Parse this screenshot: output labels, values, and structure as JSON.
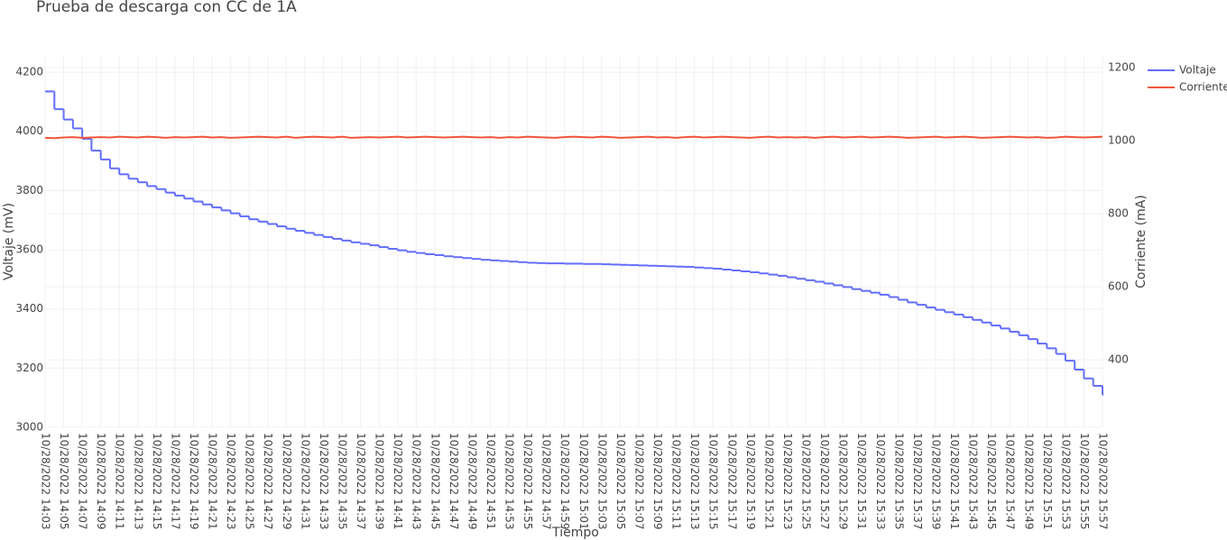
{
  "chart_data": {
    "type": "line",
    "title": "Prueba de descarga con CC de 1A",
    "x_label": "Tiempo",
    "y_label": "Voltaje (mV)",
    "y2_label": "Corriente (mA)",
    "x": [
      "10/28/2022 14:03",
      "10/28/2022 14:04",
      "10/28/2022 14:05",
      "10/28/2022 14:06",
      "10/28/2022 14:07",
      "10/28/2022 14:08",
      "10/28/2022 14:09",
      "10/28/2022 14:10",
      "10/28/2022 14:11",
      "10/28/2022 14:12",
      "10/28/2022 14:13",
      "10/28/2022 14:14",
      "10/28/2022 14:15",
      "10/28/2022 14:16",
      "10/28/2022 14:17",
      "10/28/2022 14:18",
      "10/28/2022 14:19",
      "10/28/2022 14:20",
      "10/28/2022 14:21",
      "10/28/2022 14:22",
      "10/28/2022 14:23",
      "10/28/2022 14:24",
      "10/28/2022 14:25",
      "10/28/2022 14:26",
      "10/28/2022 14:27",
      "10/28/2022 14:28",
      "10/28/2022 14:29",
      "10/28/2022 14:30",
      "10/28/2022 14:31",
      "10/28/2022 14:32",
      "10/28/2022 14:33",
      "10/28/2022 14:34",
      "10/28/2022 14:35",
      "10/28/2022 14:36",
      "10/28/2022 14:37",
      "10/28/2022 14:38",
      "10/28/2022 14:39",
      "10/28/2022 14:40",
      "10/28/2022 14:41",
      "10/28/2022 14:42",
      "10/28/2022 14:43",
      "10/28/2022 14:44",
      "10/28/2022 14:45",
      "10/28/2022 14:46",
      "10/28/2022 14:47",
      "10/28/2022 14:48",
      "10/28/2022 14:49",
      "10/28/2022 14:50",
      "10/28/2022 14:51",
      "10/28/2022 14:52",
      "10/28/2022 14:53",
      "10/28/2022 14:54",
      "10/28/2022 14:55",
      "10/28/2022 14:56",
      "10/28/2022 14:57",
      "10/28/2022 14:58",
      "10/28/2022 14:59",
      "10/28/2022 15:00",
      "10/28/2022 15:01",
      "10/28/2022 15:02",
      "10/28/2022 15:03",
      "10/28/2022 15:04",
      "10/28/2022 15:05",
      "10/28/2022 15:06",
      "10/28/2022 15:07",
      "10/28/2022 15:08",
      "10/28/2022 15:09",
      "10/28/2022 15:10",
      "10/28/2022 15:11",
      "10/28/2022 15:12",
      "10/28/2022 15:13",
      "10/28/2022 15:14",
      "10/28/2022 15:15",
      "10/28/2022 15:16",
      "10/28/2022 15:17",
      "10/28/2022 15:18",
      "10/28/2022 15:19",
      "10/28/2022 15:20",
      "10/28/2022 15:21",
      "10/28/2022 15:22",
      "10/28/2022 15:23",
      "10/28/2022 15:24",
      "10/28/2022 15:25",
      "10/28/2022 15:26",
      "10/28/2022 15:27",
      "10/28/2022 15:28",
      "10/28/2022 15:29",
      "10/28/2022 15:30",
      "10/28/2022 15:31",
      "10/28/2022 15:32",
      "10/28/2022 15:33",
      "10/28/2022 15:34",
      "10/28/2022 15:35",
      "10/28/2022 15:36",
      "10/28/2022 15:37",
      "10/28/2022 15:38",
      "10/28/2022 15:39",
      "10/28/2022 15:40",
      "10/28/2022 15:41",
      "10/28/2022 15:42",
      "10/28/2022 15:43",
      "10/28/2022 15:44",
      "10/28/2022 15:45",
      "10/28/2022 15:46",
      "10/28/2022 15:47",
      "10/28/2022 15:48",
      "10/28/2022 15:49",
      "10/28/2022 15:50",
      "10/28/2022 15:51",
      "10/28/2022 15:52",
      "10/28/2022 15:53",
      "10/28/2022 15:54",
      "10/28/2022 15:55",
      "10/28/2022 15:56",
      "10/28/2022 15:57"
    ],
    "series": [
      {
        "name": "Voltaje",
        "color": "#636efa",
        "values": [
          4135,
          4075,
          4040,
          4010,
          3975,
          3935,
          3905,
          3875,
          3855,
          3840,
          3828,
          3815,
          3805,
          3793,
          3783,
          3773,
          3763,
          3753,
          3743,
          3733,
          3723,
          3713,
          3703,
          3695,
          3687,
          3679,
          3671,
          3664,
          3657,
          3650,
          3643,
          3637,
          3631,
          3625,
          3620,
          3615,
          3609,
          3603,
          3598,
          3593,
          3589,
          3585,
          3582,
          3578,
          3575,
          3572,
          3569,
          3566,
          3564,
          3562,
          3560,
          3558,
          3556,
          3555,
          3554,
          3554,
          3553,
          3553,
          3552,
          3552,
          3551,
          3550,
          3549,
          3548,
          3547,
          3546,
          3545,
          3544,
          3543,
          3542,
          3540,
          3538,
          3536,
          3533,
          3530,
          3527,
          3524,
          3520,
          3516,
          3512,
          3507,
          3502,
          3497,
          3492,
          3486,
          3480,
          3474,
          3467,
          3461,
          3455,
          3448,
          3440,
          3431,
          3422,
          3414,
          3405,
          3397,
          3389,
          3381,
          3372,
          3363,
          3354,
          3344,
          3334,
          3323,
          3311,
          3298,
          3283,
          3267,
          3248,
          3225,
          3195,
          3165,
          3140,
          3110
        ]
      },
      {
        "name": "Corriente",
        "color": "#ef553b",
        "axis": "y2",
        "values": [
          1008,
          1007,
          1009,
          1010,
          1008,
          1009,
          1010,
          1009,
          1011,
          1010,
          1009,
          1011,
          1010,
          1008,
          1010,
          1009,
          1010,
          1011,
          1009,
          1010,
          1008,
          1009,
          1010,
          1011,
          1010,
          1009,
          1011,
          1008,
          1010,
          1011,
          1010,
          1009,
          1011,
          1008,
          1009,
          1010,
          1009,
          1010,
          1011,
          1009,
          1010,
          1011,
          1010,
          1009,
          1010,
          1011,
          1010,
          1009,
          1010,
          1008,
          1010,
          1009,
          1011,
          1010,
          1009,
          1008,
          1010,
          1011,
          1010,
          1009,
          1011,
          1010,
          1008,
          1009,
          1010,
          1011,
          1009,
          1010,
          1008,
          1010,
          1011,
          1009,
          1010,
          1011,
          1010,
          1009,
          1008,
          1010,
          1011,
          1009,
          1010,
          1009,
          1010,
          1008,
          1010,
          1011,
          1009,
          1010,
          1011,
          1009,
          1010,
          1011,
          1010,
          1008,
          1009,
          1010,
          1011,
          1009,
          1010,
          1011,
          1010,
          1008,
          1009,
          1010,
          1011,
          1010,
          1009,
          1010,
          1008,
          1009,
          1011,
          1010,
          1009,
          1010,
          1011
        ]
      }
    ],
    "xlim": [
      "10/28/2022 14:03",
      "10/28/2022 15:57"
    ],
    "xticks": [
      "10/28/2022 14:03",
      "10/28/2022 14:05",
      "10/28/2022 14:07",
      "10/28/2022 14:09",
      "10/28/2022 14:11",
      "10/28/2022 14:13",
      "10/28/2022 14:15",
      "10/28/2022 14:17",
      "10/28/2022 14:19",
      "10/28/2022 14:21",
      "10/28/2022 14:23",
      "10/28/2022 14:25",
      "10/28/2022 14:27",
      "10/28/2022 14:29",
      "10/28/2022 14:31",
      "10/28/2022 14:33",
      "10/28/2022 14:35",
      "10/28/2022 14:37",
      "10/28/2022 14:39",
      "10/28/2022 14:41",
      "10/28/2022 14:43",
      "10/28/2022 14:45",
      "10/28/2022 14:47",
      "10/28/2022 14:49",
      "10/28/2022 14:51",
      "10/28/2022 14:53",
      "10/28/2022 14:55",
      "10/28/2022 14:57",
      "10/28/2022 14:59",
      "10/28/2022 15:01",
      "10/28/2022 15:03",
      "10/28/2022 15:05",
      "10/28/2022 15:07",
      "10/28/2022 15:09",
      "10/28/2022 15:11",
      "10/28/2022 15:13",
      "10/28/2022 15:15",
      "10/28/2022 15:17",
      "10/28/2022 15:19",
      "10/28/2022 15:21",
      "10/28/2022 15:23",
      "10/28/2022 15:25",
      "10/28/2022 15:27",
      "10/28/2022 15:29",
      "10/28/2022 15:31",
      "10/28/2022 15:33",
      "10/28/2022 15:35",
      "10/28/2022 15:37",
      "10/28/2022 15:39",
      "10/28/2022 15:41",
      "10/28/2022 15:43",
      "10/28/2022 15:45",
      "10/28/2022 15:47",
      "10/28/2022 15:49",
      "10/28/2022 15:51",
      "10/28/2022 15:53",
      "10/28/2022 15:55",
      "10/28/2022 15:57"
    ],
    "ylim": [
      3000,
      4252
    ],
    "yticks": [
      3000,
      3200,
      3400,
      3600,
      3800,
      4000,
      4200
    ],
    "y2lim": [
      215,
      1230
    ],
    "y2ticks": [
      400,
      600,
      800,
      1000,
      1200
    ],
    "grid": true
  }
}
